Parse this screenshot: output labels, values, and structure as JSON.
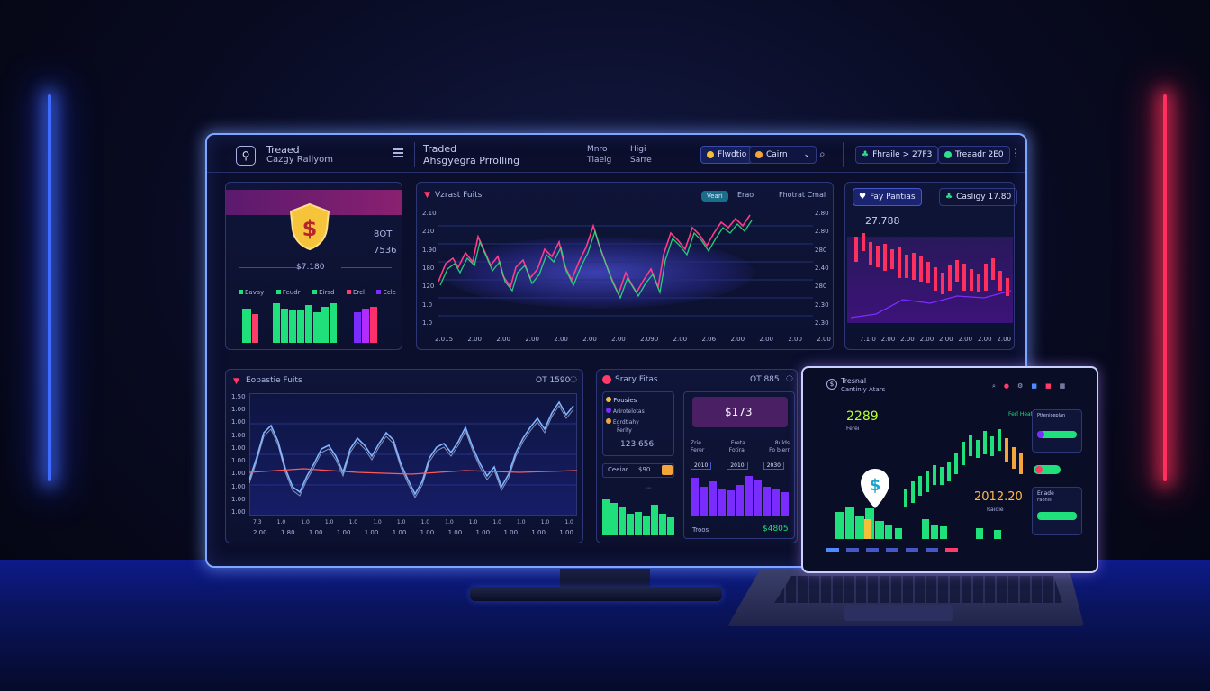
{
  "colors": {
    "accent_blue": "#3f6bff",
    "accent_red": "#ff2f5e",
    "up_green": "#1fe07a",
    "down_red": "#ff3b6b",
    "purple": "#7a2cff"
  },
  "monitor": {
    "brand_title": "Treaed",
    "brand_subtitle": "Cazgy Rallyom",
    "header_title": "Traded",
    "header_subtitle": "Ahsgyegra Prrolling",
    "nav_left": [
      "Mnro",
      "Tlaelg"
    ],
    "nav_right": [
      "Higi",
      "Sarre"
    ],
    "pill_a": "Flwdtio",
    "pill_b": "Cairn",
    "pill_c": "Fhraile > 27F3",
    "pill_d": "Treaadr 2E0"
  },
  "panel_shield": {
    "value_right_1": "8OT",
    "value_right_2": "7536",
    "center_value": "$7.180",
    "labels": [
      "Eavay",
      "Feudr",
      "Eirsd",
      "Ercl",
      "Ecle"
    ]
  },
  "panel_market": {
    "title": "Vzrast Fuits",
    "badge": "Veari",
    "link": "Erao",
    "right_label": "Fhotrat Cmai",
    "y_left": [
      "2.10",
      "210",
      "1.90",
      "180",
      "120",
      "1.0",
      "1.0"
    ],
    "y_right": [
      "2.80",
      "2.80",
      "280",
      "2.40",
      "280",
      "2.30",
      "2.30"
    ],
    "x_ticks": [
      "2.015",
      "2.00",
      "2.00",
      "2.00",
      "2.00",
      "2.00",
      "2.00",
      "2.090",
      "2.00",
      "2.06",
      "2.00",
      "2.00",
      "2.00",
      "2.00"
    ]
  },
  "panel_right": {
    "tab_a": "Fay Pantias",
    "tab_b": "Casligy 17.80",
    "value": "27.788",
    "x_ticks": [
      "7.1.0",
      "2.00",
      "2.00",
      "2.00",
      "2.00",
      "2.00",
      "2.00",
      "2.00"
    ]
  },
  "panel_lower_left": {
    "title": "Eopastie Fuits",
    "right_value": "OT 1590",
    "y_labels": [
      "1.50",
      "1.00",
      "1.00",
      "1.00",
      "1.00",
      "1.00",
      "1.00",
      "1.00",
      "1.00",
      "1.00"
    ],
    "x_ticks_top": [
      "7.3",
      "1.0",
      "1.0",
      "1.0",
      "1.0",
      "1.0",
      "1.0",
      "1.0",
      "1.0",
      "1.0",
      "1.0",
      "1.0",
      "1.0",
      "1.0"
    ],
    "x_ticks_bottom": [
      "2.00",
      "1.80",
      "1.00",
      "1.00",
      "1.00",
      "1.00",
      "1.00",
      "1.00",
      "1.00",
      "1.00",
      "1.00",
      "1.00"
    ]
  },
  "panel_lower_mid": {
    "title": "Srary Fitas",
    "right_value": "OT 885",
    "list_items": [
      "Fousies",
      "Arirotelotas",
      "Egrdtiahy",
      "Ferity"
    ],
    "list_value": "123.656",
    "row_left": "Ceeiar",
    "row_value": "$90",
    "card_value": "$173",
    "card_labels": [
      "Zrie",
      "Ereta",
      "8ulds"
    ],
    "card_labels_2": [
      "Ferer",
      "Fotira",
      "Fo blerr"
    ],
    "bar_tags": [
      "2010",
      "2010",
      "2030"
    ],
    "footer_left": "Troos",
    "footer_value": "$4805"
  },
  "laptop": {
    "brand_title": "Tresnal",
    "brand_subtitle": "Cantinly Atars",
    "big_value": "2289",
    "big_value_sub": "Ferei",
    "right_label": "Ferl Heats",
    "value_2": "2012.20",
    "value_2_sub": "Raidie",
    "card_title": "Ptteniceplan",
    "card_title_2": "Enade",
    "card_sub_2": "Faonis"
  }
}
